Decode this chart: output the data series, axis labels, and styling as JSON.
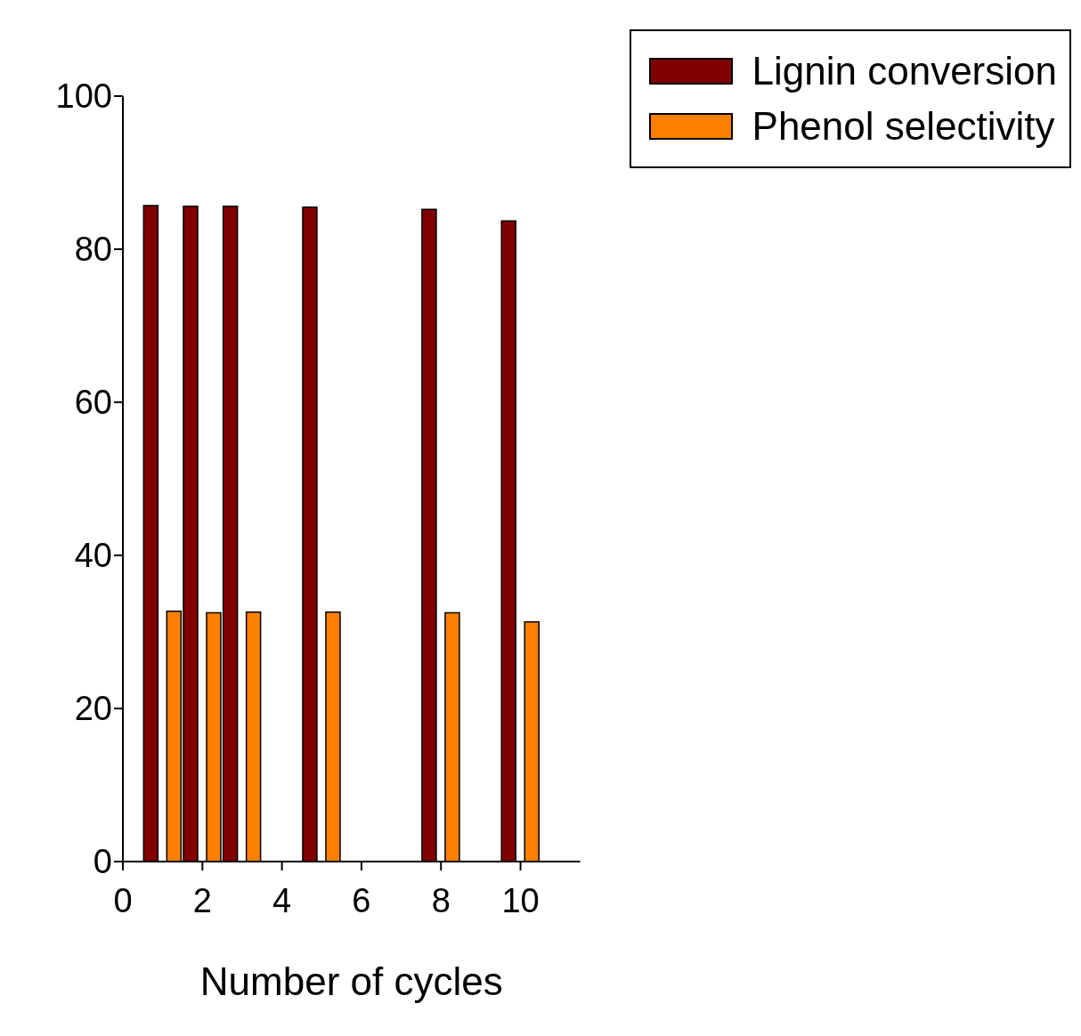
{
  "chart_data": {
    "type": "bar",
    "xlabel": "Number of cycles",
    "x": [
      1,
      2,
      3,
      5,
      8,
      10
    ],
    "series": [
      {
        "name": "Lignin conversion",
        "color": "#800000",
        "values": [
          85.7,
          85.6,
          85.6,
          85.5,
          85.2,
          83.7
        ]
      },
      {
        "name": "Phenol selectivity",
        "color": "#ff8000",
        "values": [
          32.7,
          32.5,
          32.6,
          32.6,
          32.5,
          31.3
        ]
      }
    ],
    "xlim": [
      0,
      11.5
    ],
    "xticks": [
      0,
      2,
      4,
      6,
      8,
      10
    ],
    "ylim": [
      0,
      100
    ],
    "yticks": [
      0,
      20,
      40,
      60,
      80,
      100
    ],
    "grid": false,
    "legend": "top right"
  }
}
